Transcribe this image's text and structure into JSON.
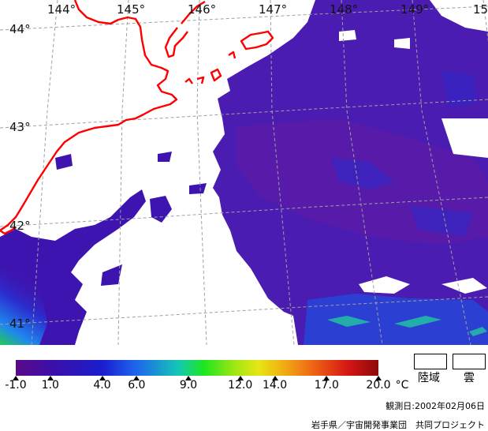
{
  "map": {
    "longitude_labels": [
      "144°",
      "145°",
      "146°",
      "147°",
      "148°",
      "149°",
      "15"
    ],
    "latitude_labels": [
      "44°",
      "43°",
      "42°",
      "41°"
    ],
    "colors": {
      "land": "#ffffff",
      "cloud": "#ffffff",
      "coastline": "#ff0000",
      "grid": "#a0a0a0",
      "sea_typical": "#4a1bb0"
    }
  },
  "legend": {
    "colorbar_tick_labels": [
      "-1.0",
      "1.0",
      "4.0",
      "6.0",
      "9.0",
      "12.0",
      "14.0",
      "17.0",
      "20.0"
    ],
    "colorbar_ticks": [
      -1.0,
      1.0,
      4.0,
      6.0,
      9.0,
      12.0,
      14.0,
      17.0,
      20.0
    ],
    "colorbar_min": -1.0,
    "colorbar_max": 20.0,
    "unit": "°C",
    "land_label": "陸域",
    "cloud_label": "雲",
    "observation_date": "観測日:2002年02月06日",
    "credit": "岩手県／宇宙開発事業団　共同プロジェクト"
  }
}
